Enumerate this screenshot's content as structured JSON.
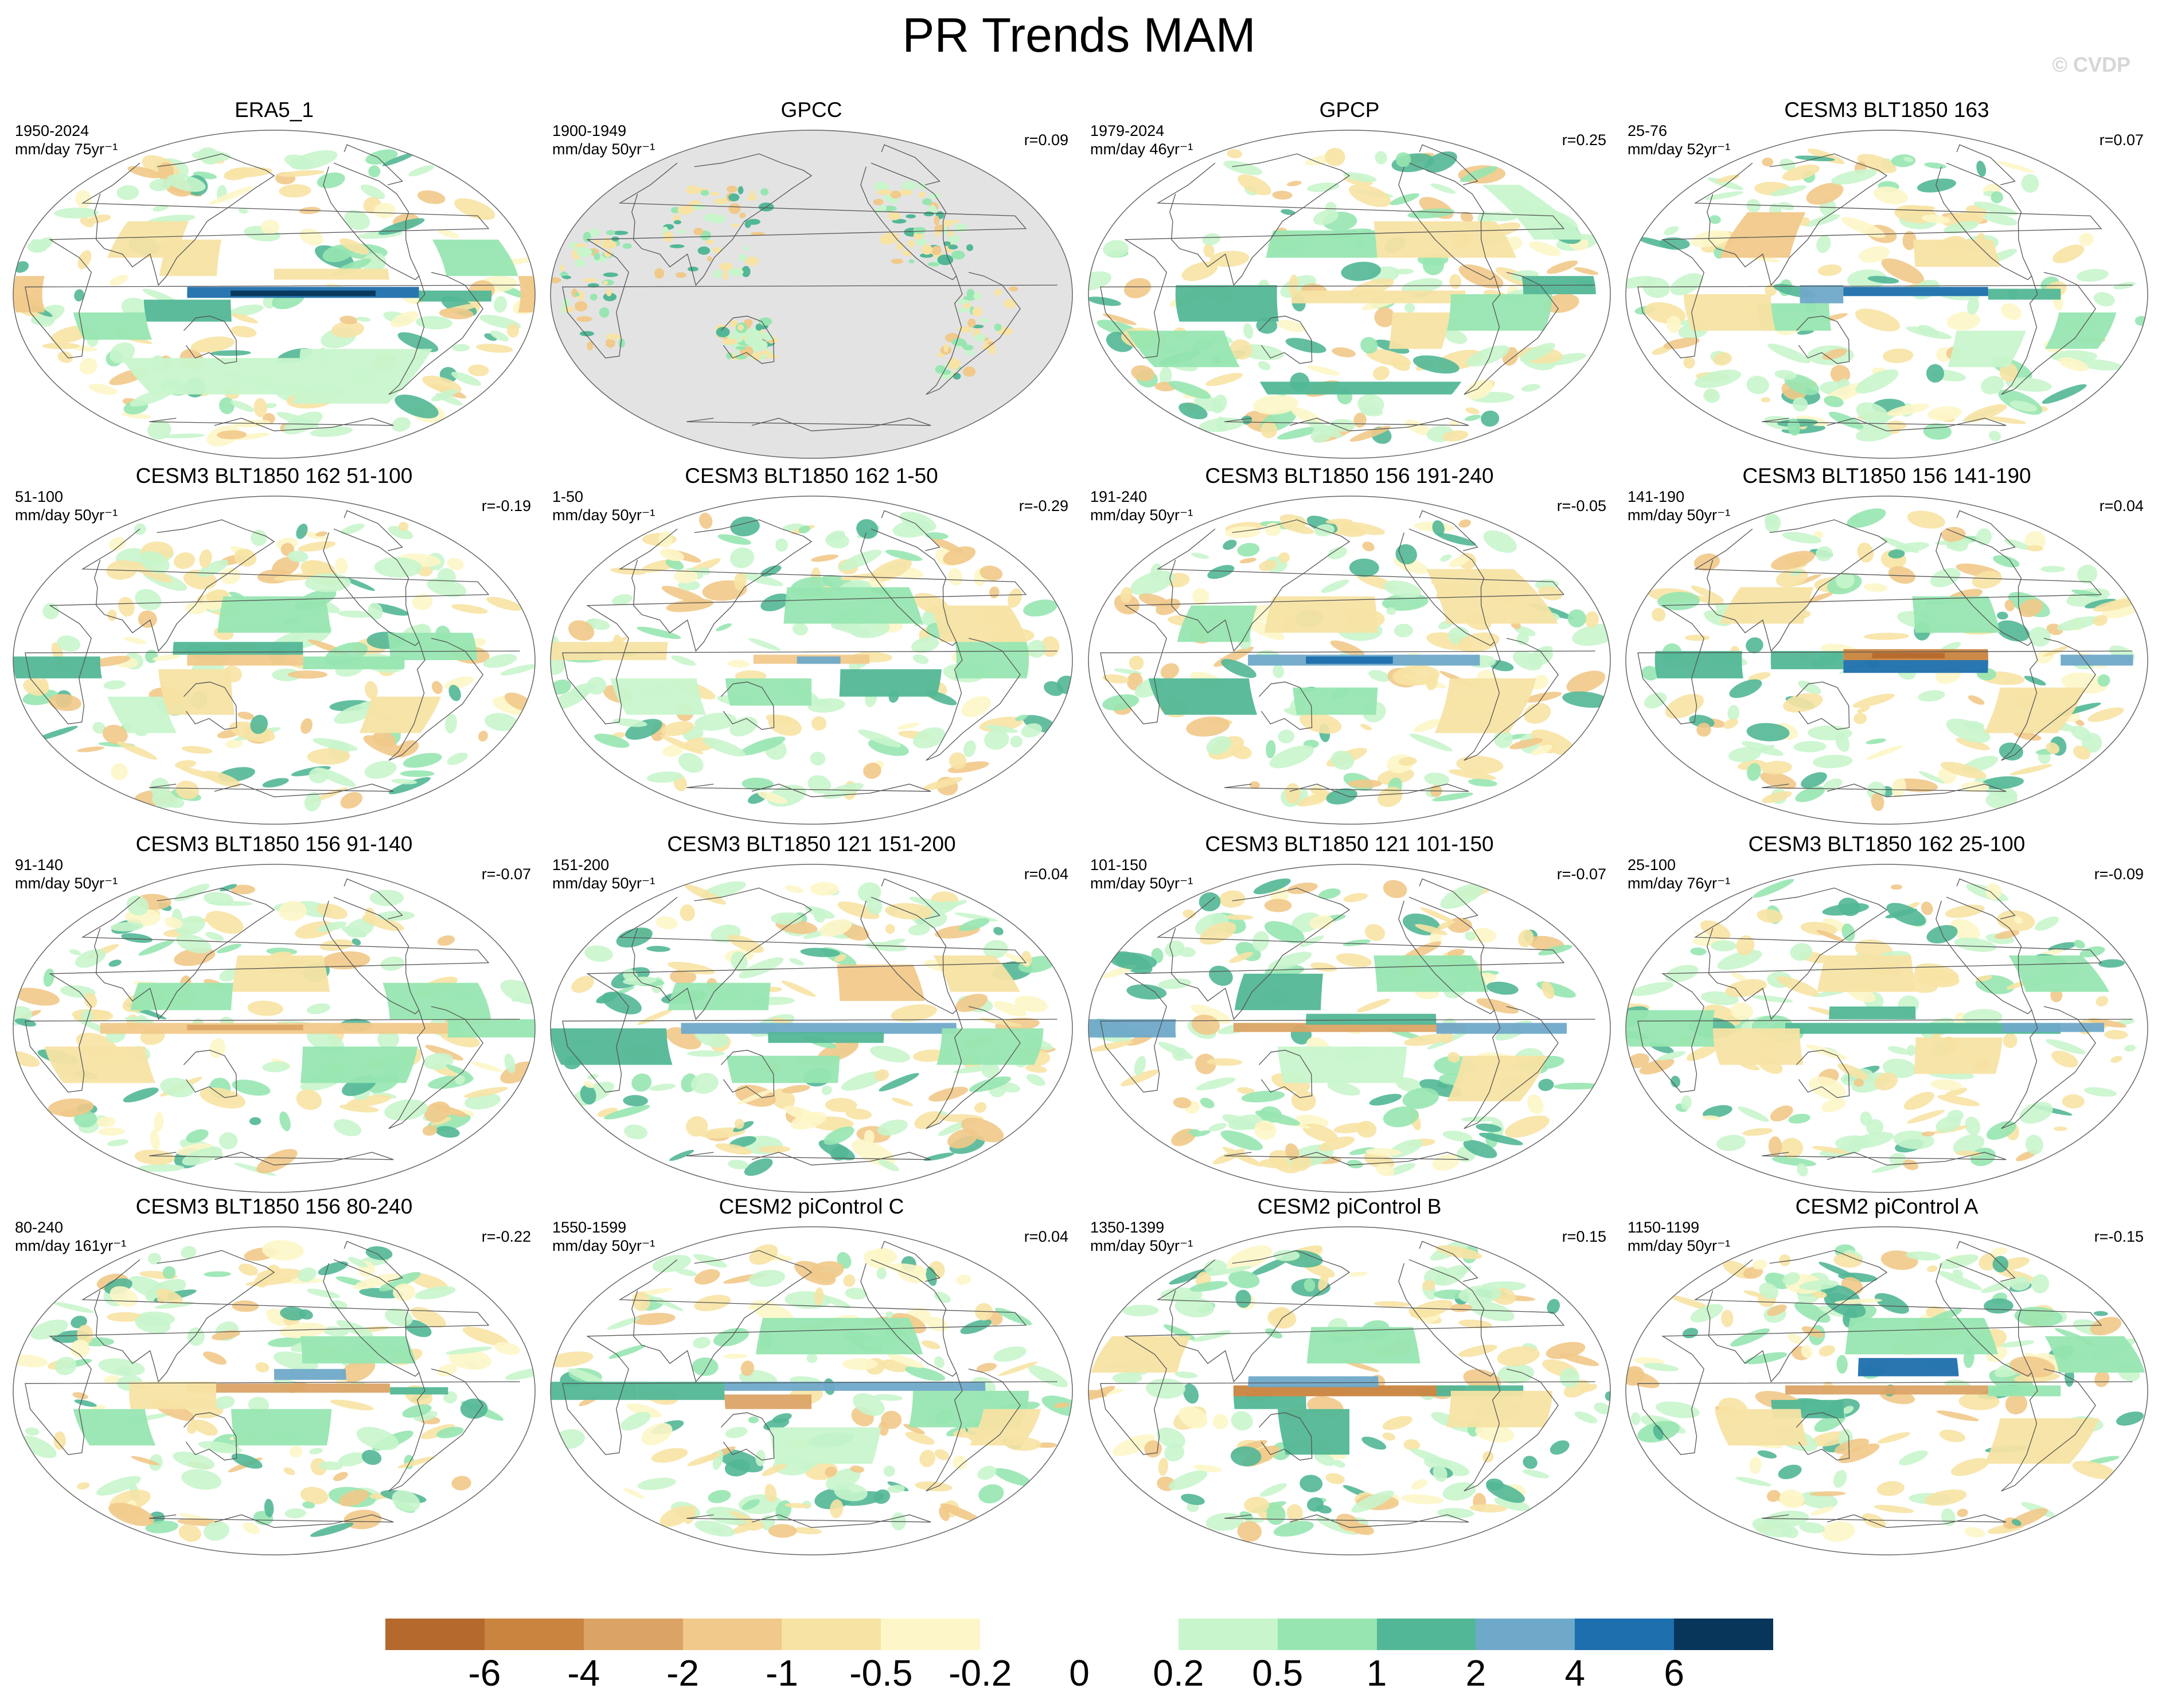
{
  "title": "PR Trends MAM",
  "copyright": "© CVDP",
  "chart_data": {
    "type": "heatmap",
    "title": "PR Trends MAM",
    "projection": "robinson",
    "land_mask_color": "#e3e3e3",
    "panels": [
      {
        "title": "ERA5_1",
        "period": "1950-2024",
        "units": "mm/day 75yr⁻¹",
        "r": "",
        "pattern": "era5"
      },
      {
        "title": "GPCC",
        "period": "1900-1949",
        "units": "mm/day 50yr⁻¹",
        "r": "r=0.09",
        "pattern": "gpcc"
      },
      {
        "title": "GPCP",
        "period": "1979-2024",
        "units": "mm/day 46yr⁻¹",
        "r": "r=0.25",
        "pattern": "gpcp"
      },
      {
        "title": "CESM3 BLT1850 163",
        "period": "25-76",
        "units": "mm/day 52yr⁻¹",
        "r": "r=0.07",
        "pattern": "wet-pacific"
      },
      {
        "title": "CESM3 BLT1850 162 51-100",
        "period": "51-100",
        "units": "mm/day 50yr⁻¹",
        "r": "r=-0.19",
        "pattern": "mixed-a"
      },
      {
        "title": "CESM3 BLT1850 162 1-50",
        "period": "1-50",
        "units": "mm/day 50yr⁻¹",
        "r": "r=-0.29",
        "pattern": "mixed-b"
      },
      {
        "title": "CESM3 BLT1850 156 191-240",
        "period": "191-240",
        "units": "mm/day 50yr⁻¹",
        "r": "r=-0.05",
        "pattern": "mixed-c"
      },
      {
        "title": "CESM3 BLT1850 156 141-190",
        "period": "141-190",
        "units": "mm/day 50yr⁻¹",
        "r": "r=0.04",
        "pattern": "dipole"
      },
      {
        "title": "CESM3 BLT1850 156 91-140",
        "period": "91-140",
        "units": "mm/day 50yr⁻¹",
        "r": "r=-0.07",
        "pattern": "dry-equator"
      },
      {
        "title": "CESM3 BLT1850 121 151-200",
        "period": "151-200",
        "units": "mm/day 50yr⁻¹",
        "r": "r=0.04",
        "pattern": "wet-equator"
      },
      {
        "title": "CESM3 BLT1850 121 101-150",
        "period": "101-150",
        "units": "mm/day 50yr⁻¹",
        "r": "r=-0.07",
        "pattern": "mixed-d"
      },
      {
        "title": "CESM3 BLT1850 162 25-100",
        "period": "25-100",
        "units": "mm/day 76yr⁻¹",
        "r": "r=-0.09",
        "pattern": "wet-east"
      },
      {
        "title": "CESM3 BLT1850 156 80-240",
        "period": "80-240",
        "units": "mm/day 161yr⁻¹",
        "r": "r=-0.22",
        "pattern": "weak"
      },
      {
        "title": "CESM2 piControl C",
        "period": "1550-1599",
        "units": "mm/day 50yr⁻¹",
        "r": "r=0.04",
        "pattern": "wet-central"
      },
      {
        "title": "CESM2 piControl B",
        "period": "1350-1399",
        "units": "mm/day 50yr⁻¹",
        "r": "r=0.15",
        "pattern": "dry-central"
      },
      {
        "title": "CESM2 piControl A",
        "period": "1150-1199",
        "units": "mm/day 50yr⁻¹",
        "r": "r=-0.15",
        "pattern": "north-wet"
      }
    ],
    "colorbar": {
      "levels": [
        "-6",
        "-4",
        "-2",
        "-1",
        "-0.5",
        "-0.2",
        "0",
        "0.2",
        "0.5",
        "1",
        "2",
        "4",
        "6"
      ],
      "colors": [
        "#b5692d",
        "#c9843f",
        "#dba466",
        "#f1c98a",
        "#f7e3a4",
        "#fdf6c8",
        "#ffffff",
        "#ffffff",
        "#c8f5cc",
        "#97e6b1",
        "#52b796",
        "#6fa9c9",
        "#1d6fad",
        "#07365a"
      ]
    }
  }
}
